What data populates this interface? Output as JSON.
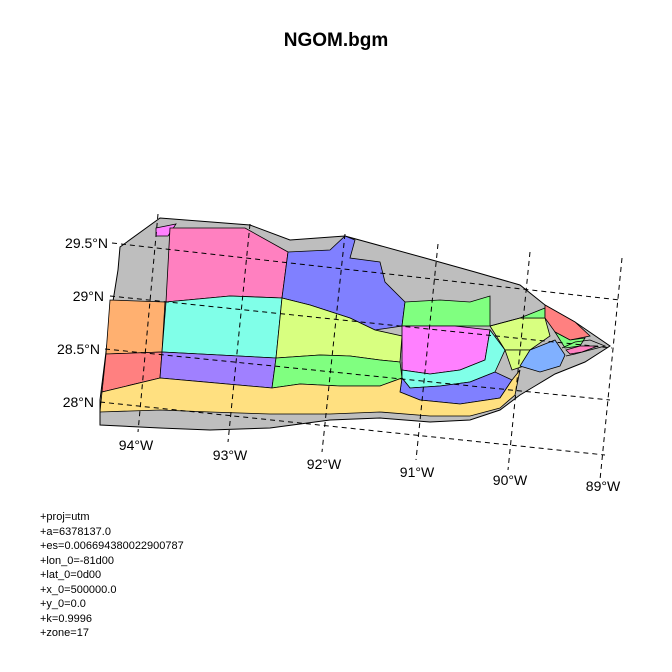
{
  "title": "NGOM.bgm",
  "lat_labels": [
    "29.5°N",
    "29°N",
    "28.5°N",
    "28°N"
  ],
  "lon_labels": [
    "94°W",
    "93°W",
    "92°W",
    "91°W",
    "90°W",
    "89°W"
  ],
  "proj_lines": [
    "+proj=utm",
    "+a=6378137.0",
    "+es=0.006694380022900787",
    "+lon_0=-81d00",
    "+lat_0=0d00",
    "+x_0=500000.0",
    "+y_0=0.0",
    "+k=0.9996",
    "+zone=17"
  ],
  "colors": {
    "outer": "#bebebe",
    "pink": "#ff80c0",
    "blue": "#8080ff",
    "cyan": "#80ffe8",
    "lime": "#d8ff80",
    "green": "#80ff80",
    "magenta": "#ff80ff",
    "orange": "#ffb070",
    "red": "#ff8080",
    "purple": "#a080ff",
    "yellow": "#ffe080",
    "sky": "#80b0ff"
  }
}
